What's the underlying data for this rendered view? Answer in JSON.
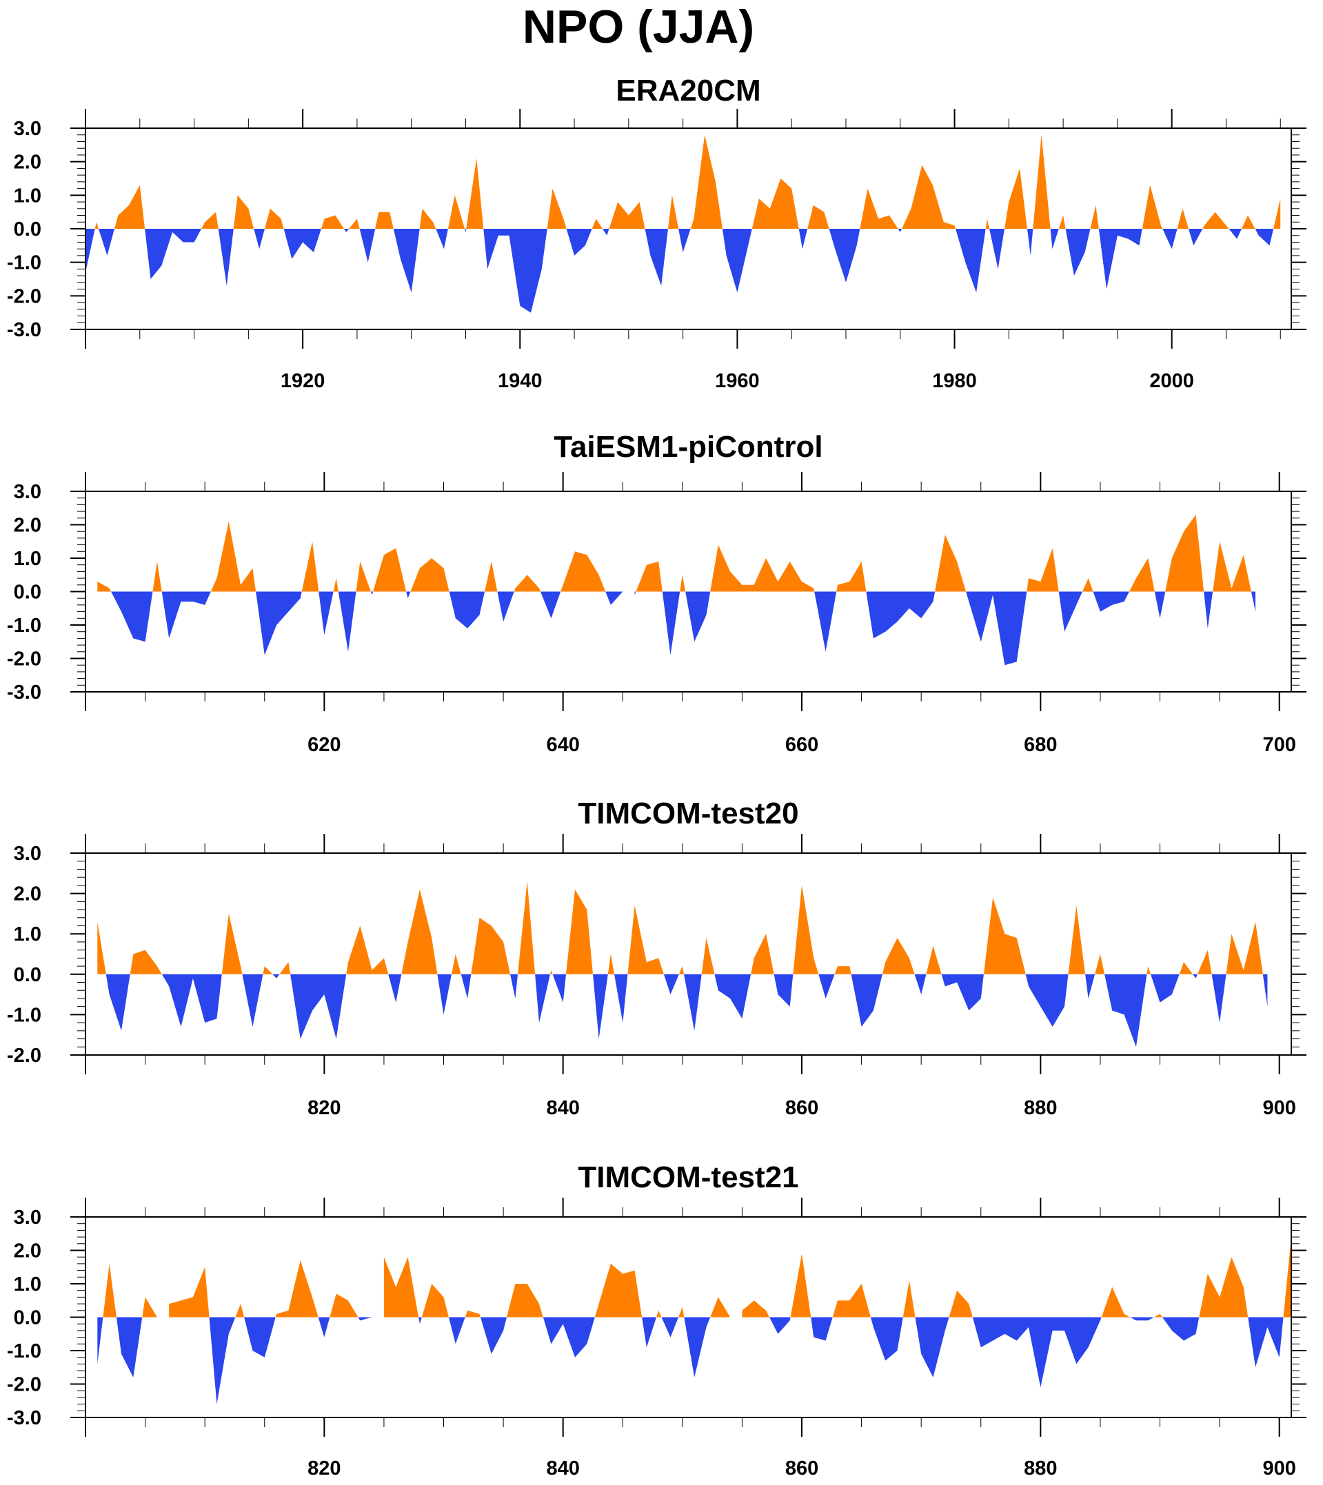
{
  "title": "NPO (JJA)",
  "colors": {
    "positive": "#ff8000",
    "negative": "#2a45ec",
    "axis": "#000000"
  },
  "chart_data": [
    {
      "type": "area",
      "title": "ERA20CM",
      "x_start": 1900,
      "xlim": [
        1900,
        2011
      ],
      "ylim": [
        -3,
        3
      ],
      "yticks": [
        -3,
        -2,
        -1,
        0,
        1,
        2,
        3
      ],
      "ytick_labels": [
        "-3.0",
        "-2.0",
        "-1.0",
        "0.0",
        "1.0",
        "2.0",
        "3.0"
      ],
      "xticks": [
        1920,
        1940,
        1960,
        1980,
        2000
      ],
      "xtick_labels": [
        "1920",
        "1940",
        "1960",
        "1980",
        "2000"
      ],
      "values": [
        -1.3,
        0.2,
        -0.8,
        0.4,
        0.7,
        1.3,
        -1.5,
        -1.1,
        -0.1,
        -0.4,
        -0.4,
        0.2,
        0.5,
        -1.7,
        1.0,
        0.6,
        -0.6,
        0.6,
        0.3,
        -0.9,
        -0.4,
        -0.7,
        0.3,
        0.4,
        -0.1,
        0.3,
        -1.0,
        0.5,
        0.5,
        -0.9,
        -1.9,
        0.6,
        0.2,
        -0.6,
        1.0,
        -0.1,
        2.1,
        -1.2,
        -0.2,
        -0.2,
        -2.3,
        -2.5,
        -1.2,
        1.2,
        0.3,
        -0.8,
        -0.5,
        0.3,
        -0.2,
        0.8,
        0.4,
        0.8,
        -0.8,
        -1.7,
        1.0,
        -0.7,
        0.3,
        2.8,
        1.4,
        -0.8,
        -1.9,
        -0.5,
        0.9,
        0.6,
        1.5,
        1.2,
        -0.6,
        0.7,
        0.5,
        -0.6,
        -1.6,
        -0.5,
        1.2,
        0.3,
        0.4,
        -0.1,
        0.6,
        1.9,
        1.3,
        0.2,
        0.1,
        -1.0,
        -1.9,
        0.3,
        -1.2,
        0.8,
        1.8,
        -0.8,
        2.8,
        -0.6,
        0.4,
        -1.4,
        -0.7,
        0.7,
        -1.8,
        -0.2,
        -0.3,
        -0.5,
        1.3,
        0.1,
        -0.6,
        0.6,
        -0.5,
        0.1,
        0.5,
        0.1,
        -0.3,
        0.4,
        -0.2,
        -0.5,
        0.9
      ]
    },
    {
      "type": "area",
      "title": "TaiESM1-piControl",
      "x_start": 601,
      "xlim": [
        600,
        701
      ],
      "ylim": [
        -3,
        3
      ],
      "yticks": [
        -3,
        -2,
        -1,
        0,
        1,
        2,
        3
      ],
      "ytick_labels": [
        "-3.0",
        "-2.0",
        "-1.0",
        "0.0",
        "1.0",
        "2.0",
        "3.0"
      ],
      "xticks": [
        620,
        640,
        660,
        680,
        700
      ],
      "xtick_labels": [
        "620",
        "640",
        "660",
        "680",
        "700"
      ],
      "values": [
        0.3,
        0.1,
        -0.6,
        -1.4,
        -1.5,
        0.9,
        -1.4,
        -0.3,
        -0.3,
        -0.4,
        0.4,
        2.1,
        0.2,
        0.7,
        -1.9,
        -1.0,
        -0.6,
        -0.2,
        1.5,
        -1.3,
        0.4,
        -1.8,
        0.9,
        -0.1,
        1.1,
        1.3,
        -0.2,
        0.7,
        1.0,
        0.7,
        -0.8,
        -1.1,
        -0.7,
        0.9,
        -0.9,
        0.1,
        0.5,
        0.1,
        -0.8,
        0.2,
        1.2,
        1.1,
        0.5,
        -0.4,
        0.0,
        -0.1,
        0.8,
        0.9,
        -1.9,
        0.5,
        -1.5,
        -0.7,
        1.4,
        0.6,
        0.2,
        0.2,
        1.0,
        0.3,
        0.9,
        0.3,
        0.1,
        -1.8,
        0.2,
        0.3,
        0.9,
        -1.4,
        -1.2,
        -0.9,
        -0.5,
        -0.8,
        -0.3,
        1.7,
        0.9,
        -0.3,
        -1.5,
        -0.1,
        -2.2,
        -2.1,
        0.4,
        0.3,
        1.3,
        -1.2,
        -0.4,
        0.4,
        -0.6,
        -0.4,
        -0.3,
        0.4,
        1.0,
        -0.8,
        1.0,
        1.8,
        2.3,
        -1.1,
        1.5,
        0.1,
        1.1,
        -0.6
      ]
    },
    {
      "type": "area",
      "title": "TIMCOM-test20",
      "x_start": 801,
      "xlim": [
        800,
        901
      ],
      "ylim": [
        -2,
        3
      ],
      "yticks": [
        -2,
        -1,
        0,
        1,
        2,
        3
      ],
      "ytick_labels": [
        "-2.0",
        "-1.0",
        "0.0",
        "1.0",
        "2.0",
        "3.0"
      ],
      "xticks": [
        820,
        840,
        860,
        880,
        900
      ],
      "xtick_labels": [
        "820",
        "840",
        "860",
        "880",
        "900"
      ],
      "values": [
        1.3,
        -0.5,
        -1.4,
        0.5,
        0.6,
        0.2,
        -0.3,
        -1.3,
        -0.1,
        -1.2,
        -1.1,
        1.5,
        0.2,
        -1.3,
        0.2,
        -0.1,
        0.3,
        -1.6,
        -0.9,
        -0.5,
        -1.6,
        0.3,
        1.2,
        0.1,
        0.4,
        -0.7,
        0.8,
        2.1,
        0.9,
        -1.0,
        0.5,
        -0.6,
        1.4,
        1.2,
        0.8,
        -0.6,
        2.3,
        -1.2,
        0.1,
        -0.7,
        2.1,
        1.6,
        -1.6,
        0.5,
        -1.2,
        1.7,
        0.3,
        0.4,
        -0.5,
        0.2,
        -1.4,
        0.9,
        -0.4,
        -0.6,
        -1.1,
        0.4,
        1.0,
        -0.5,
        -0.8,
        2.2,
        0.4,
        -0.6,
        0.2,
        0.2,
        -1.3,
        -0.9,
        0.3,
        0.9,
        0.4,
        -0.5,
        0.7,
        -0.3,
        -0.2,
        -0.9,
        -0.6,
        1.9,
        1.0,
        0.9,
        -0.3,
        -0.8,
        -1.3,
        -0.8,
        1.7,
        -0.6,
        0.5,
        -0.9,
        -1.0,
        -1.8,
        0.2,
        -0.7,
        -0.5,
        0.3,
        -0.1,
        0.6,
        -1.2,
        1.0,
        0.1,
        1.3,
        -0.8
      ]
    },
    {
      "type": "area",
      "title": "TIMCOM-test21",
      "x_start": 801,
      "xlim": [
        800,
        901
      ],
      "ylim": [
        -3,
        3
      ],
      "yticks": [
        -3,
        -2,
        -1,
        0,
        1,
        2,
        3
      ],
      "ytick_labels": [
        "-3.0",
        "-2.0",
        "-1.0",
        "0.0",
        "1.0",
        "2.0",
        "3.0"
      ],
      "xticks": [
        820,
        840,
        860,
        880,
        900
      ],
      "xtick_labels": [
        "820",
        "840",
        "860",
        "880",
        "900"
      ],
      "values": [
        -1.4,
        1.6,
        -1.1,
        -1.8,
        0.6,
        0.0,
        0.4,
        0.5,
        0.6,
        1.5,
        -2.6,
        -0.5,
        0.4,
        -1.0,
        -1.2,
        0.1,
        0.2,
        1.7,
        0.6,
        -0.6,
        0.7,
        0.5,
        -0.1,
        0.0,
        1.8,
        0.9,
        1.8,
        -0.2,
        1.0,
        0.6,
        -0.8,
        0.2,
        0.1,
        -1.1,
        -0.4,
        1.0,
        1.0,
        0.4,
        -0.8,
        -0.2,
        -1.2,
        -0.8,
        0.4,
        1.6,
        1.3,
        1.4,
        -0.9,
        0.2,
        -0.6,
        0.3,
        -1.8,
        -0.3,
        0.6,
        0.0,
        0.2,
        0.5,
        0.2,
        -0.5,
        -0.1,
        1.9,
        -0.6,
        -0.7,
        0.5,
        0.5,
        1.0,
        -0.3,
        -1.3,
        -1.0,
        1.1,
        -1.1,
        -1.8,
        -0.4,
        0.8,
        0.4,
        -0.9,
        -0.7,
        -0.5,
        -0.7,
        -0.3,
        -2.1,
        -0.4,
        -0.4,
        -1.4,
        -0.9,
        -0.1,
        0.9,
        0.1,
        -0.1,
        -0.1,
        0.1,
        -0.4,
        -0.7,
        -0.5,
        1.3,
        0.6,
        1.8,
        0.9,
        -1.5,
        -0.3,
        -1.2,
        2.4
      ]
    }
  ]
}
